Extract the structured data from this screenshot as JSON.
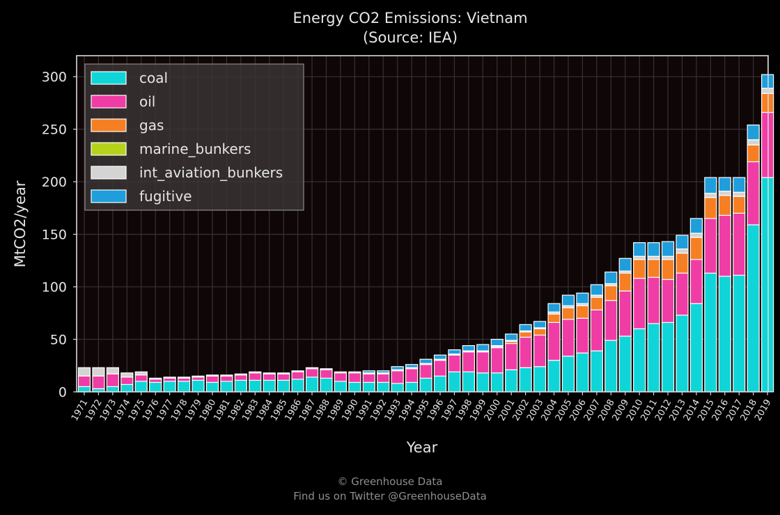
{
  "chart_data": {
    "type": "bar",
    "stacked": true,
    "title": "Energy CO2 Emissions: Vietnam",
    "subtitle": "(Source: IEA)",
    "xlabel": "Year",
    "ylabel": "MtCO2/year",
    "ylim": [
      0,
      320
    ],
    "yticks": [
      0,
      50,
      100,
      150,
      200,
      250,
      300
    ],
    "grid": true,
    "legend_position": "top-left",
    "colors": {
      "background": "#000000",
      "plot_background": "#0f0707",
      "grid": "#3a3232",
      "axis": "#d9d9d9",
      "text": "#e6e6e6"
    },
    "categories": [
      "1971",
      "1972",
      "1973",
      "1974",
      "1975",
      "1976",
      "1977",
      "1978",
      "1979",
      "1980",
      "1981",
      "1982",
      "1983",
      "1984",
      "1985",
      "1986",
      "1987",
      "1988",
      "1989",
      "1990",
      "1991",
      "1992",
      "1993",
      "1994",
      "1995",
      "1996",
      "1997",
      "1998",
      "1999",
      "2000",
      "2001",
      "2002",
      "2003",
      "2004",
      "2005",
      "2006",
      "2007",
      "2008",
      "2009",
      "2010",
      "2011",
      "2012",
      "2013",
      "2014",
      "2015",
      "2016",
      "2017",
      "2018",
      "2019"
    ],
    "series": [
      {
        "name": "coal",
        "color": "#10d5d8",
        "values": [
          5,
          3,
          5,
          7,
          10,
          9,
          10,
          10,
          11,
          9,
          10,
          11,
          11,
          11,
          11,
          12,
          14,
          13,
          10,
          9,
          9,
          9,
          8,
          9,
          13,
          15,
          19,
          19,
          18,
          18,
          21,
          23,
          24,
          30,
          34,
          37,
          39,
          49,
          53,
          60,
          65,
          66,
          73,
          84,
          113,
          110,
          111,
          159,
          204
        ]
      },
      {
        "name": "oil",
        "color": "#f03ca5",
        "values": [
          10,
          12,
          12,
          7,
          6,
          3,
          3,
          3,
          3,
          6,
          5,
          5,
          7,
          6,
          6,
          7,
          8,
          8,
          8,
          9,
          8,
          8,
          12,
          13,
          13,
          15,
          16,
          19,
          20,
          24,
          25,
          29,
          30,
          36,
          35,
          33,
          39,
          38,
          43,
          48,
          44,
          41,
          40,
          42,
          52,
          58,
          59,
          60,
          62
        ]
      },
      {
        "name": "gas",
        "color": "#f67f23",
        "values": [
          0,
          0,
          0,
          0,
          0,
          0,
          0,
          0,
          0,
          0,
          0,
          0,
          0,
          0,
          0,
          0,
          0,
          0,
          0,
          0,
          0,
          0,
          0,
          0,
          0,
          0,
          0,
          0,
          0,
          1,
          2,
          5,
          6,
          8,
          11,
          12,
          12,
          14,
          17,
          18,
          17,
          19,
          19,
          21,
          20,
          19,
          16,
          16,
          18
        ]
      },
      {
        "name": "marine_bunkers",
        "color": "#b5d31b",
        "values": [
          0,
          0,
          0,
          0,
          0,
          0,
          0,
          0,
          0,
          0,
          0,
          0,
          0,
          0,
          0,
          0,
          0,
          0,
          0,
          0,
          0,
          0,
          0,
          0,
          0,
          0,
          0,
          0,
          0,
          0,
          0,
          0,
          0,
          0,
          0,
          0,
          0,
          0,
          0,
          0,
          0,
          0,
          0,
          0,
          0,
          0,
          0,
          0,
          0
        ]
      },
      {
        "name": "int_aviation_bunkers",
        "color": "#d4d4d4",
        "values": [
          8,
          8,
          6,
          4,
          3,
          1,
          1,
          1,
          1,
          1,
          1,
          1,
          1,
          1,
          1,
          1,
          1,
          1,
          1,
          1,
          1,
          1,
          1,
          1,
          1,
          1,
          1,
          1,
          1,
          1,
          1,
          1,
          1,
          2,
          2,
          2,
          2,
          2,
          2,
          3,
          3,
          3,
          4,
          4,
          4,
          4,
          4,
          5,
          5
        ]
      },
      {
        "name": "fugitive",
        "color": "#1f9edb",
        "values": [
          0,
          0,
          0,
          0,
          0,
          0,
          0,
          0,
          0,
          0,
          0,
          0,
          0,
          0,
          0,
          0,
          0,
          0,
          0,
          0,
          2,
          2,
          3,
          3,
          4,
          4,
          4,
          5,
          6,
          6,
          6,
          6,
          6,
          8,
          10,
          10,
          10,
          11,
          12,
          13,
          13,
          14,
          13,
          14,
          15,
          13,
          14,
          14,
          13
        ]
      }
    ]
  },
  "credits": {
    "line1": "© Greenhouse Data",
    "line2": "Find us on Twitter @GreenhouseData"
  }
}
